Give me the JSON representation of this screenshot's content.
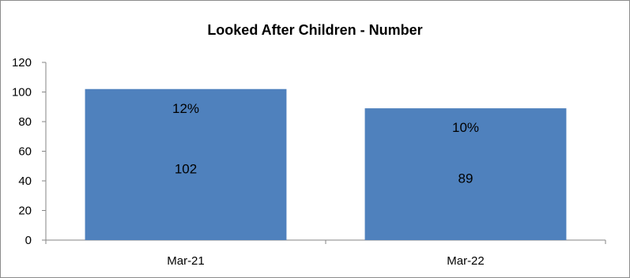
{
  "chart_data": {
    "type": "bar",
    "title": "Looked After Children - Number",
    "categories": [
      "Mar-21",
      "Mar-22"
    ],
    "values": [
      102,
      89
    ],
    "percent_labels": [
      "12%",
      "10%"
    ],
    "ylim": [
      0,
      120
    ],
    "yticks": [
      0,
      20,
      40,
      60,
      80,
      100,
      120
    ],
    "grid": false,
    "legend": "none",
    "bar_color": "#4f81bd"
  }
}
